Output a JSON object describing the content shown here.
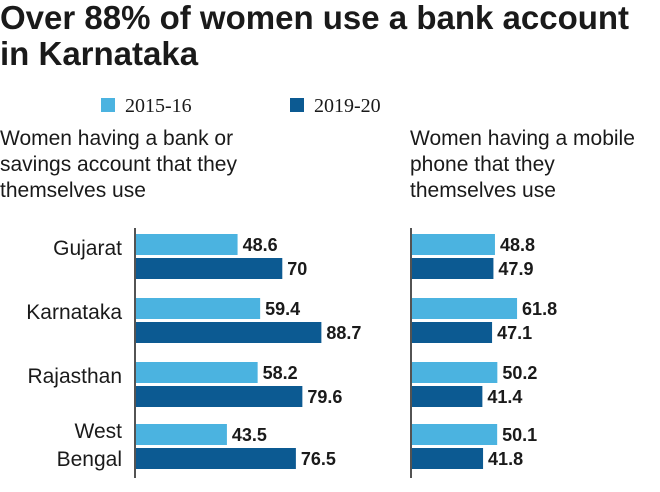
{
  "title": "Over 88% of women use a bank account in Karnataka",
  "legend": [
    {
      "label": "2015-16",
      "color": "#4bb3e0"
    },
    {
      "label": "2019-20",
      "color": "#0c5a92"
    }
  ],
  "chart_data": [
    {
      "type": "bar",
      "orientation": "horizontal",
      "title": "Women having a bank or savings account that they themselves use",
      "categories": [
        "Gujarat",
        "Karnataka",
        "Rajasthan",
        "West Bengal"
      ],
      "series": [
        {
          "name": "2015-16",
          "values": [
            48.6,
            59.4,
            58.2,
            43.5
          ],
          "labels": [
            "48.6",
            "59.4",
            "58.2",
            "43.5"
          ]
        },
        {
          "name": "2019-20",
          "values": [
            70,
            88.7,
            79.6,
            76.5
          ],
          "labels": [
            "70",
            "88.7",
            "79.6",
            "76.5"
          ]
        }
      ],
      "xlim": [
        0,
        100
      ],
      "grid": false,
      "legend_position": "top"
    },
    {
      "type": "bar",
      "orientation": "horizontal",
      "title": "Women having a mobile phone that they themselves use",
      "categories": [
        "Gujarat",
        "Karnataka",
        "Rajasthan",
        "West Bengal"
      ],
      "series": [
        {
          "name": "2015-16",
          "values": [
            48.8,
            61.8,
            50.2,
            50.1
          ],
          "labels": [
            "48.8",
            "61.8",
            "50.2",
            "50.1"
          ]
        },
        {
          "name": "2019-20",
          "values": [
            47.9,
            47.1,
            41.4,
            41.8
          ],
          "labels": [
            "47.9",
            "47.1",
            "41.4",
            "41.8"
          ]
        }
      ],
      "xlim": [
        0,
        100
      ],
      "grid": false,
      "legend_position": "top"
    }
  ]
}
